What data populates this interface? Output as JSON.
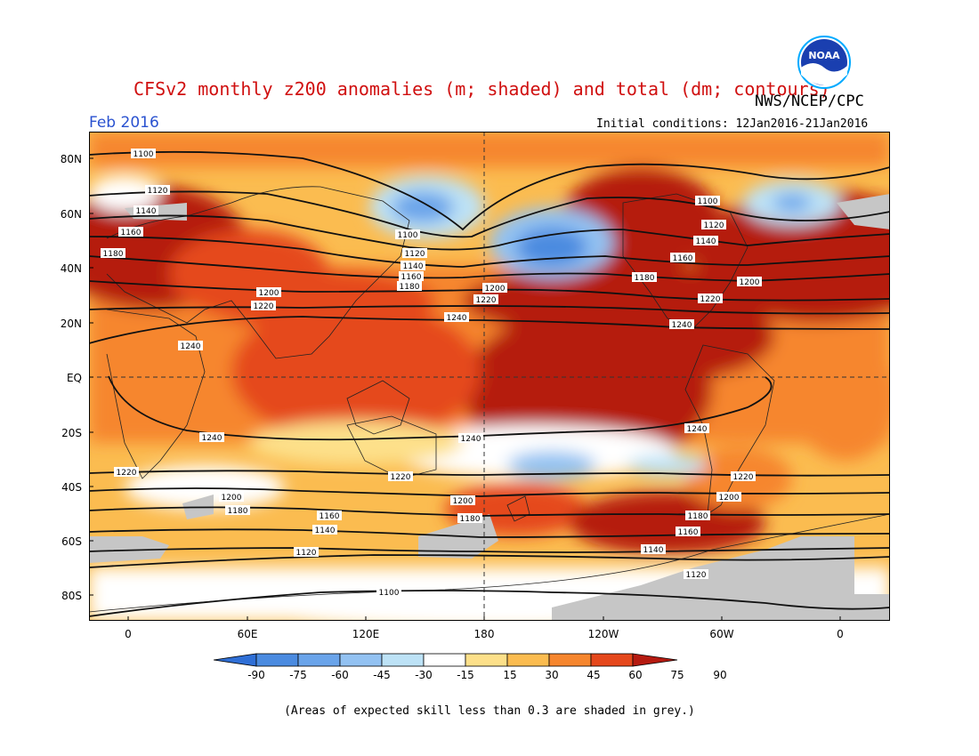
{
  "header": {
    "title": "CFSv2 monthly z200 anomalies (m; shaded) and total (dm; contours)",
    "agency": "NWS/NCEP/CPC",
    "month": "Feb 2016",
    "initial_conditions": "Initial conditions: 12Jan2016-21Jan2016",
    "logo_text": "NOAA"
  },
  "axes": {
    "lat_labels": [
      "80N",
      "60N",
      "40N",
      "20N",
      "EQ",
      "20S",
      "40S",
      "60S",
      "80S"
    ],
    "lon_labels": [
      "0",
      "60E",
      "120E",
      "180",
      "120W",
      "60W",
      "0"
    ]
  },
  "colorbar": {
    "labels": [
      "-90",
      "-75",
      "-60",
      "-45",
      "-30",
      "-15",
      "15",
      "30",
      "45",
      "60",
      "75",
      "90"
    ],
    "colors": [
      "#2f6fd6",
      "#4b8be0",
      "#6aa4ea",
      "#93c2f2",
      "#bde2f6",
      "#ffffff",
      "#fde08a",
      "#fbbc50",
      "#f6862e",
      "#e5481c",
      "#b51a10"
    ]
  },
  "contour_labels": [
    "1100",
    "1120",
    "1140",
    "1160",
    "1180",
    "1200",
    "1220",
    "1240"
  ],
  "footnote": "(Areas of expected skill less than 0.3 are shaded in grey.)"
}
